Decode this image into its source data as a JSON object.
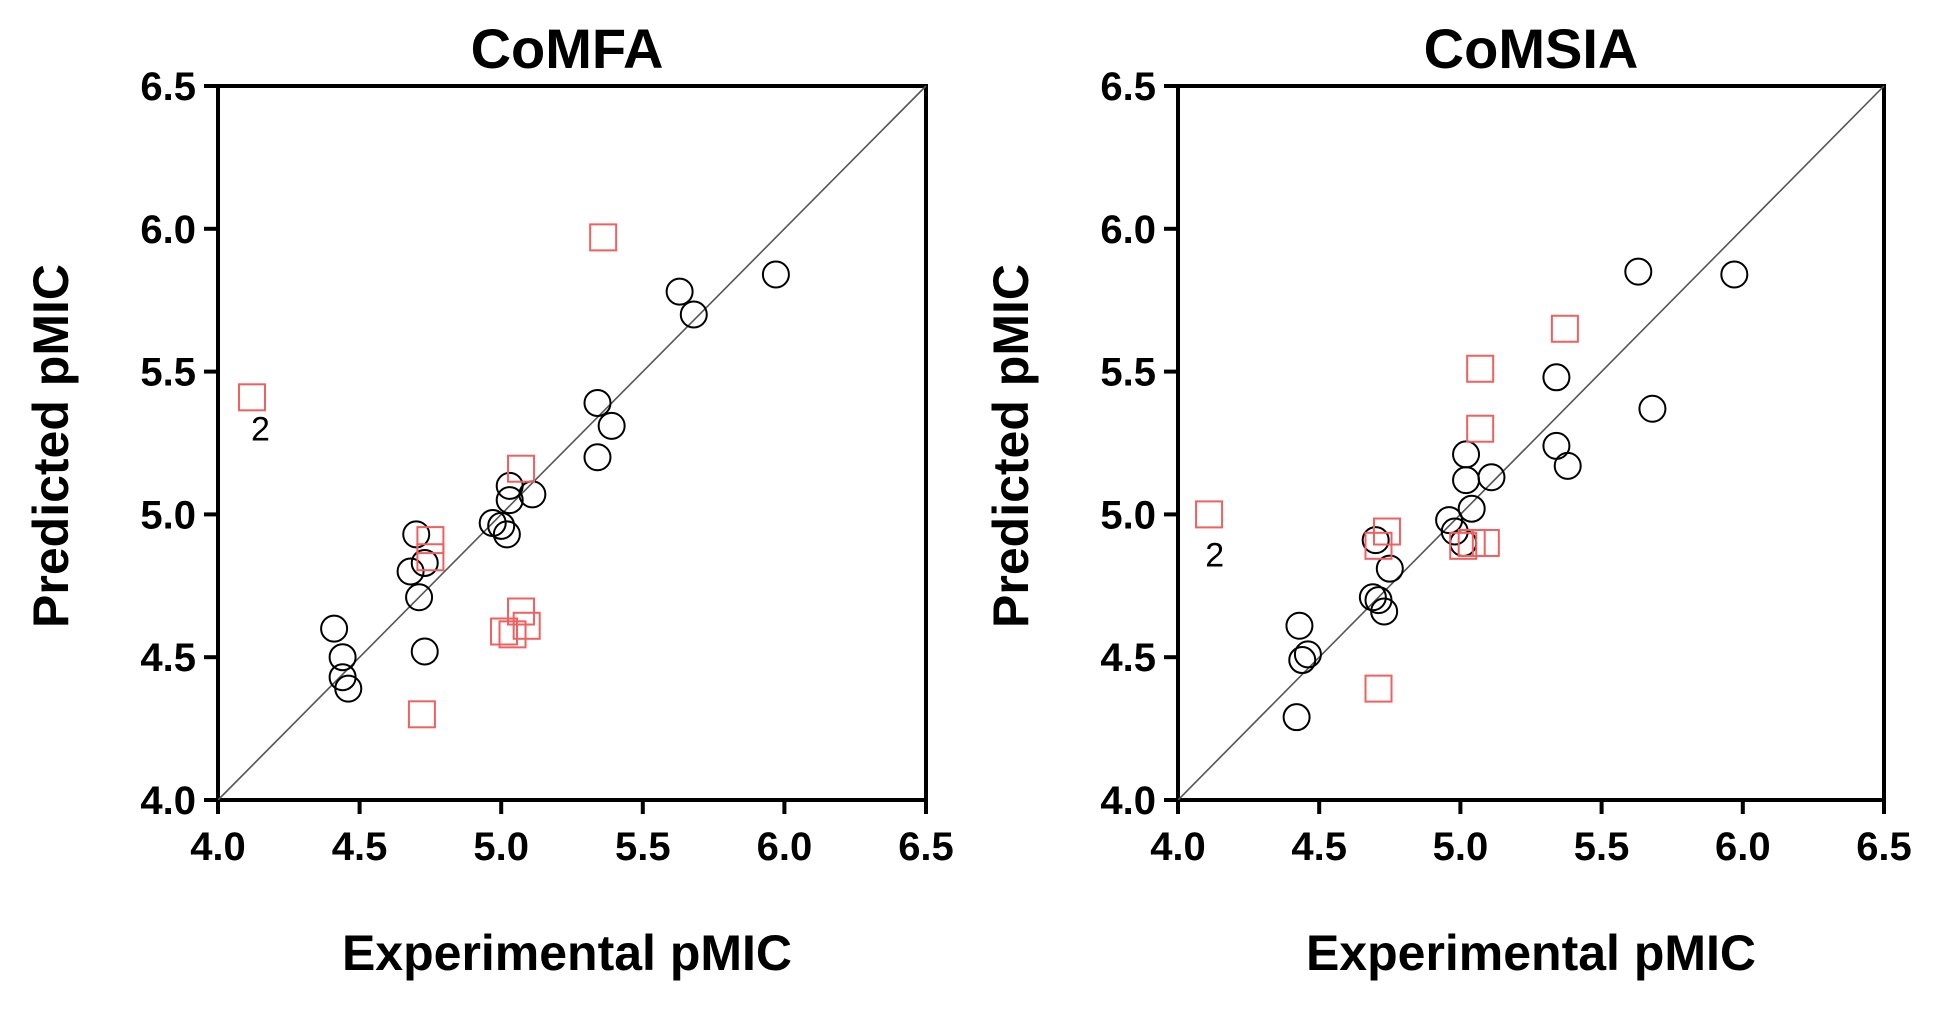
{
  "chart_data": [
    {
      "type": "scatter",
      "title": "CoMFA",
      "xlabel": "Experimental pMIC",
      "ylabel": "Predicted pMIC",
      "xlim": [
        4.0,
        6.5
      ],
      "ylim": [
        4.0,
        6.5
      ],
      "xticks": [
        "4.0",
        "4.5",
        "5.0",
        "5.5",
        "6.0",
        "6.5"
      ],
      "yticks": [
        "4.0",
        "4.5",
        "5.0",
        "5.5",
        "6.0",
        "6.5"
      ],
      "identity_line": true,
      "grid": false,
      "series": [
        {
          "marker": "circle",
          "color": "#000000",
          "points": [
            [
              4.41,
              4.6
            ],
            [
              4.44,
              4.5
            ],
            [
              4.44,
              4.43
            ],
            [
              4.46,
              4.39
            ],
            [
              4.68,
              4.8
            ],
            [
              4.7,
              4.93
            ],
            [
              4.71,
              4.71
            ],
            [
              4.73,
              4.83
            ],
            [
              4.73,
              4.52
            ],
            [
              4.97,
              4.97
            ],
            [
              5.0,
              4.96
            ],
            [
              5.02,
              4.93
            ],
            [
              5.03,
              5.1
            ],
            [
              5.03,
              5.05
            ],
            [
              5.11,
              5.07
            ],
            [
              5.34,
              5.39
            ],
            [
              5.34,
              5.2
            ],
            [
              5.39,
              5.31
            ],
            [
              5.63,
              5.78
            ],
            [
              5.68,
              5.7
            ],
            [
              5.97,
              5.84
            ]
          ]
        },
        {
          "marker": "square",
          "color": "#f06060",
          "points": [
            [
              4.12,
              5.41
            ],
            [
              4.72,
              4.3
            ],
            [
              4.75,
              4.85
            ],
            [
              4.75,
              4.91
            ],
            [
              5.01,
              4.59
            ],
            [
              5.04,
              4.58
            ],
            [
              5.07,
              5.16
            ],
            [
              5.07,
              4.66
            ],
            [
              5.09,
              4.61
            ],
            [
              5.36,
              5.97
            ]
          ]
        }
      ],
      "annotations": [
        {
          "text": "2",
          "x": 4.15,
          "y": 5.3
        }
      ]
    },
    {
      "type": "scatter",
      "title": "CoMSIA",
      "xlabel": "Experimental pMIC",
      "ylabel": "Predicted pMIC",
      "xlim": [
        4.0,
        6.5
      ],
      "ylim": [
        4.0,
        6.5
      ],
      "xticks": [
        "4.0",
        "4.5",
        "5.0",
        "5.5",
        "6.0",
        "6.5"
      ],
      "yticks": [
        "4.0",
        "4.5",
        "5.0",
        "5.5",
        "6.0",
        "6.5"
      ],
      "identity_line": true,
      "grid": false,
      "series": [
        {
          "marker": "circle",
          "color": "#000000",
          "points": [
            [
              4.42,
              4.29
            ],
            [
              4.43,
              4.61
            ],
            [
              4.44,
              4.49
            ],
            [
              4.46,
              4.51
            ],
            [
              4.69,
              4.71
            ],
            [
              4.7,
              4.91
            ],
            [
              4.71,
              4.7
            ],
            [
              4.73,
              4.66
            ],
            [
              4.75,
              4.81
            ],
            [
              4.96,
              4.98
            ],
            [
              4.98,
              4.94
            ],
            [
              5.01,
              4.9
            ],
            [
              5.02,
              5.21
            ],
            [
              5.02,
              5.12
            ],
            [
              5.04,
              5.02
            ],
            [
              5.11,
              5.13
            ],
            [
              5.34,
              5.48
            ],
            [
              5.34,
              5.24
            ],
            [
              5.38,
              5.17
            ],
            [
              5.63,
              5.85
            ],
            [
              5.68,
              5.37
            ],
            [
              5.97,
              5.84
            ]
          ]
        },
        {
          "marker": "square",
          "color": "#f06060",
          "points": [
            [
              4.11,
              5.0
            ],
            [
              4.71,
              4.39
            ],
            [
              4.71,
              4.89
            ],
            [
              4.74,
              4.94
            ],
            [
              5.01,
              4.89
            ],
            [
              5.04,
              4.9
            ],
            [
              5.07,
              5.51
            ],
            [
              5.07,
              5.3
            ],
            [
              5.09,
              4.9
            ],
            [
              5.37,
              5.65
            ]
          ]
        }
      ],
      "annotations": [
        {
          "text": "2",
          "x": 4.13,
          "y": 4.86
        }
      ]
    }
  ]
}
